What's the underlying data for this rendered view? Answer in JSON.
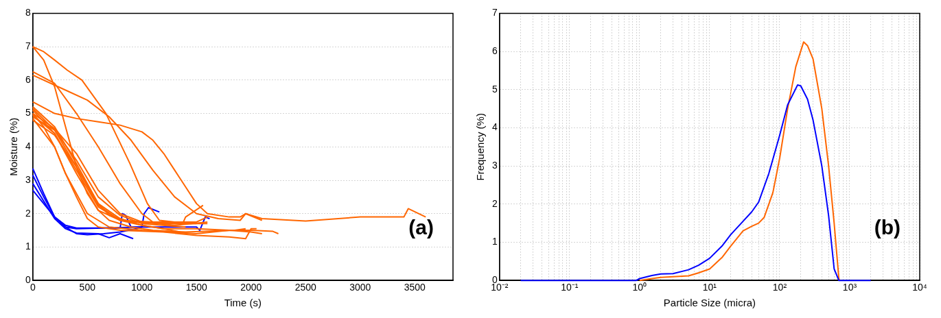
{
  "chart_data": [
    {
      "type": "line",
      "xlabel": "Time (s)",
      "ylabel": "Moisture (%)",
      "xlim": [
        0,
        3850
      ],
      "ylim": [
        0,
        8
      ],
      "xticks": [
        0,
        500,
        1000,
        1500,
        2000,
        2500,
        3000,
        3500
      ],
      "yticks": [
        0,
        1,
        2,
        3,
        4,
        5,
        6,
        7,
        8
      ],
      "grid": "y",
      "legend": false,
      "marker": "none",
      "line_style": "solid",
      "annotations": [
        "(a)"
      ],
      "series": [
        {
          "color": "#ff6600",
          "x": [
            0,
            100,
            200,
            300,
            400,
            500,
            600,
            700,
            900,
            1100,
            1400,
            1850,
            1950
          ],
          "values": [
            7.0,
            6.6,
            5.8,
            4.6,
            3.4,
            2.6,
            2.1,
            1.8,
            1.6,
            1.5,
            1.45,
            1.5,
            1.55
          ]
        },
        {
          "color": "#ff6600",
          "x": [
            0,
            100,
            200,
            315,
            450,
            670,
            890,
            1050,
            1160,
            1300,
            1500,
            1600
          ],
          "values": [
            7.0,
            6.85,
            6.6,
            6.3,
            6.0,
            5.0,
            3.5,
            2.3,
            1.8,
            1.75,
            1.75,
            1.9
          ]
        },
        {
          "color": "#ff6600",
          "x": [
            0,
            200,
            400,
            600,
            800,
            1000,
            1100,
            1300,
            1500
          ],
          "values": [
            6.25,
            5.9,
            5.0,
            4.0,
            2.9,
            2.0,
            1.75,
            1.7,
            1.7
          ]
        },
        {
          "color": "#ff6600",
          "x": [
            0,
            300,
            500,
            700,
            900,
            1100,
            1300,
            1500,
            1700,
            1900,
            1950,
            2100
          ],
          "values": [
            6.15,
            5.7,
            5.4,
            4.9,
            4.2,
            3.3,
            2.5,
            2.0,
            1.85,
            1.8,
            2.0,
            1.8
          ]
        },
        {
          "color": "#ff6600",
          "x": [
            0,
            200,
            400,
            600,
            800,
            1000,
            1100,
            1200,
            1300,
            1400,
            1500,
            1600,
            1800,
            1900,
            1950,
            2100,
            2500,
            3000,
            3400,
            3440,
            3600
          ],
          "values": [
            5.35,
            5.0,
            4.85,
            4.75,
            4.65,
            4.45,
            4.2,
            3.8,
            3.3,
            2.8,
            2.3,
            2.0,
            1.9,
            1.9,
            2.0,
            1.85,
            1.78,
            1.9,
            1.9,
            2.15,
            1.9
          ]
        },
        {
          "color": "#ff6600",
          "x": [
            0,
            200,
            400,
            600,
            700,
            900,
            1200,
            1500
          ],
          "values": [
            5.2,
            4.6,
            3.5,
            2.3,
            1.95,
            1.75,
            1.7,
            1.75
          ]
        },
        {
          "color": "#ff6600",
          "x": [
            0,
            200,
            400,
            600,
            800,
            1200,
            1600
          ],
          "values": [
            5.1,
            4.4,
            3.2,
            2.1,
            1.8,
            1.7,
            1.7
          ]
        },
        {
          "color": "#ff6600",
          "x": [
            0,
            200,
            400,
            600,
            800,
            1000,
            1300,
            1600
          ],
          "values": [
            5.0,
            4.55,
            3.8,
            2.7,
            2.0,
            1.75,
            1.65,
            1.75
          ]
        },
        {
          "color": "#ff6600",
          "x": [
            0,
            200,
            400,
            600,
            800,
            1000,
            1400
          ],
          "values": [
            4.9,
            4.5,
            3.6,
            2.5,
            1.95,
            1.7,
            1.6
          ]
        },
        {
          "color": "#ff6600",
          "x": [
            0,
            200,
            400,
            600,
            800,
            1000,
            1200,
            1350
          ],
          "values": [
            4.8,
            4.35,
            3.4,
            2.3,
            1.85,
            1.65,
            1.55,
            1.45
          ]
        },
        {
          "color": "#ff6600",
          "x": [
            0,
            100,
            200,
            300,
            400,
            500,
            600,
            800,
            1200,
            1500,
            1800,
            1950,
            2000,
            2050
          ],
          "values": [
            5.0,
            4.6,
            4.0,
            3.2,
            2.5,
            1.85,
            1.6,
            1.5,
            1.45,
            1.35,
            1.3,
            1.25,
            1.55,
            1.55
          ]
        },
        {
          "color": "#ff6600",
          "x": [
            0,
            200,
            300,
            500,
            700,
            1000,
            1500,
            1800,
            2000,
            2200,
            2250
          ],
          "values": [
            4.85,
            4.0,
            3.2,
            2.0,
            1.6,
            1.5,
            1.4,
            1.5,
            1.5,
            1.47,
            1.4
          ]
        },
        {
          "color": "#ff6600",
          "x": [
            0,
            200,
            400,
            600,
            800,
            1100,
            1380,
            1400,
            1560
          ],
          "values": [
            4.95,
            4.4,
            3.3,
            2.2,
            1.8,
            1.75,
            1.75,
            1.9,
            2.25
          ]
        },
        {
          "color": "#ff6600",
          "x": [
            0,
            200,
            400,
            600,
            800,
            1000,
            1200,
            1500,
            1800,
            2000,
            2100
          ],
          "values": [
            5.15,
            4.5,
            3.4,
            2.25,
            1.8,
            1.65,
            1.55,
            1.55,
            1.5,
            1.45,
            1.4
          ]
        },
        {
          "color": "#0000ff",
          "x": [
            0,
            100,
            200,
            300,
            400,
            800,
            820,
            850,
            900,
            1000,
            1020,
            1060,
            1160
          ],
          "values": [
            3.35,
            2.6,
            1.9,
            1.65,
            1.57,
            1.57,
            2.0,
            1.95,
            1.6,
            1.6,
            2.0,
            2.18,
            2.05
          ]
        },
        {
          "color": "#0000ff",
          "x": [
            0,
            100,
            200,
            300,
            400,
            1000,
            1500,
            1530,
            1580,
            1620
          ],
          "values": [
            3.15,
            2.5,
            1.9,
            1.6,
            1.55,
            1.6,
            1.6,
            1.5,
            1.9,
            1.85
          ]
        },
        {
          "color": "#0000ff",
          "x": [
            0,
            200,
            300,
            400,
            600,
            700,
            800,
            920
          ],
          "values": [
            2.9,
            1.85,
            1.55,
            1.42,
            1.4,
            1.28,
            1.4,
            1.25
          ]
        },
        {
          "color": "#0000ff",
          "x": [
            0,
            200,
            300,
            400,
            500,
            650,
            800,
            950,
            1000
          ],
          "values": [
            2.7,
            1.9,
            1.6,
            1.4,
            1.37,
            1.4,
            1.45,
            1.55,
            1.6
          ]
        }
      ]
    },
    {
      "type": "line",
      "xlabel": "Particle Size (micra)",
      "ylabel": "Frequency (%)",
      "log": "x",
      "xlim": [
        0.01,
        10000
      ],
      "ylim": [
        0,
        7
      ],
      "xticks": [
        {
          "value": 0.01,
          "label": "10⁻²"
        },
        {
          "value": 0.02,
          "label": null
        },
        {
          "value": 0.03,
          "label": null
        },
        {
          "value": 0.04,
          "label": null
        },
        {
          "value": 0.05,
          "label": null
        },
        {
          "value": 0.06,
          "label": null
        },
        {
          "value": 0.07,
          "label": null
        },
        {
          "value": 0.08,
          "label": null
        },
        {
          "value": 0.09,
          "label": null
        },
        {
          "value": 0.1,
          "label": "10⁻¹"
        },
        {
          "value": 0.2,
          "label": null
        },
        {
          "value": 0.3,
          "label": null
        },
        {
          "value": 0.4,
          "label": null
        },
        {
          "value": 0.5,
          "label": null
        },
        {
          "value": 0.6,
          "label": null
        },
        {
          "value": 0.7,
          "label": null
        },
        {
          "value": 0.8,
          "label": null
        },
        {
          "value": 0.9,
          "label": null
        },
        {
          "value": 1,
          "label": "10⁰"
        },
        {
          "value": 2,
          "label": null
        },
        {
          "value": 3,
          "label": null
        },
        {
          "value": 4,
          "label": null
        },
        {
          "value": 5,
          "label": null
        },
        {
          "value": 6,
          "label": null
        },
        {
          "value": 7,
          "label": null
        },
        {
          "value": 8,
          "label": null
        },
        {
          "value": 9,
          "label": null
        },
        {
          "value": 10,
          "label": "10¹"
        },
        {
          "value": 20,
          "label": null
        },
        {
          "value": 30,
          "label": null
        },
        {
          "value": 40,
          "label": null
        },
        {
          "value": 50,
          "label": null
        },
        {
          "value": 60,
          "label": null
        },
        {
          "value": 70,
          "label": null
        },
        {
          "value": 80,
          "label": null
        },
        {
          "value": 90,
          "label": null
        },
        {
          "value": 100,
          "label": "10²"
        },
        {
          "value": 200,
          "label": null
        },
        {
          "value": 300,
          "label": null
        },
        {
          "value": 400,
          "label": null
        },
        {
          "value": 500,
          "label": null
        },
        {
          "value": 600,
          "label": null
        },
        {
          "value": 700,
          "label": null
        },
        {
          "value": 800,
          "label": null
        },
        {
          "value": 900,
          "label": null
        },
        {
          "value": 1000,
          "label": "10³"
        },
        {
          "value": 2000,
          "label": null
        },
        {
          "value": 3000,
          "label": null
        },
        {
          "value": 4000,
          "label": null
        },
        {
          "value": 5000,
          "label": null
        },
        {
          "value": 6000,
          "label": null
        },
        {
          "value": 7000,
          "label": null
        },
        {
          "value": 8000,
          "label": null
        },
        {
          "value": 9000,
          "label": null
        },
        {
          "value": 10000,
          "label": "10⁴"
        }
      ],
      "yticks": [
        0,
        1,
        2,
        3,
        4,
        5,
        6,
        7
      ],
      "grid": true,
      "legend": false,
      "marker": "none",
      "line_style": "solid",
      "annotations": [
        "(b)"
      ],
      "series": [
        {
          "color": "#0000ff",
          "x": [
            0.02,
            0.9,
            1,
            1.5,
            2,
            3,
            5,
            7,
            10,
            15,
            20,
            30,
            40,
            50,
            70,
            100,
            130,
            180,
            200,
            250,
            300,
            400,
            500,
            600,
            700,
            2000
          ],
          "values": [
            0,
            0,
            0.05,
            0.13,
            0.17,
            0.18,
            0.28,
            0.4,
            0.58,
            0.9,
            1.2,
            1.55,
            1.8,
            2.05,
            2.8,
            3.8,
            4.6,
            5.12,
            5.1,
            4.75,
            4.2,
            3.0,
            1.7,
            0.3,
            0,
            0
          ]
        },
        {
          "color": "#ff6600",
          "x": [
            1,
            1.5,
            2,
            5,
            7,
            10,
            15,
            20,
            30,
            40,
            50,
            60,
            80,
            100,
            130,
            170,
            220,
            250,
            300,
            400,
            500,
            600,
            700,
            720
          ],
          "values": [
            0,
            0.05,
            0.08,
            0.12,
            0.2,
            0.3,
            0.6,
            0.9,
            1.3,
            1.42,
            1.5,
            1.65,
            2.3,
            3.2,
            4.5,
            5.6,
            6.25,
            6.15,
            5.8,
            4.5,
            3.0,
            1.5,
            0.05,
            0
          ]
        }
      ]
    }
  ]
}
